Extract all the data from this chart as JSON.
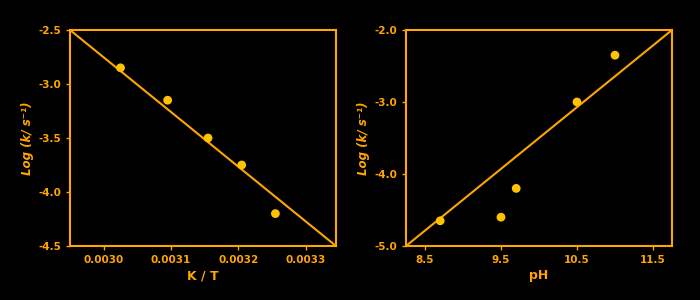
{
  "background_color": "#000000",
  "axes_color": "#FFA500",
  "line_color": "#FFA500",
  "point_color": "#FFC200",
  "text_color": "#FFA500",
  "plot1": {
    "xlabel": "K / T",
    "ylabel": "Log (k/ s⁻¹)",
    "xlim": [
      0.00295,
      0.003345
    ],
    "ylim": [
      -4.5,
      -2.5
    ],
    "xticks": [
      0.003,
      0.0031,
      0.0032,
      0.0033
    ],
    "yticks": [
      -4.5,
      -4.0,
      -3.5,
      -3.0,
      -2.5
    ],
    "x_data": [
      0.003025,
      0.003095,
      0.003155,
      0.003205,
      0.003255
    ],
    "y_data": [
      -2.85,
      -3.15,
      -3.5,
      -3.75,
      -4.2
    ],
    "line_x": [
      0.00295,
      0.003345
    ],
    "line_y": [
      -2.5,
      -4.5
    ]
  },
  "plot2": {
    "xlabel": "pH",
    "ylabel": "Log (k/ s⁻¹)",
    "xlim": [
      8.25,
      11.75
    ],
    "ylim": [
      -5.0,
      -2.0
    ],
    "xticks": [
      8.5,
      9.5,
      10.5,
      11.5
    ],
    "yticks": [
      -5.0,
      -4.0,
      -3.0,
      -2.0
    ],
    "x_data": [
      8.7,
      9.5,
      9.7,
      10.5,
      11.0
    ],
    "y_data": [
      -4.65,
      -4.6,
      -4.2,
      -3.0,
      -2.35
    ],
    "line_x": [
      8.25,
      11.75
    ],
    "line_y": [
      -5.0,
      -2.0
    ]
  }
}
